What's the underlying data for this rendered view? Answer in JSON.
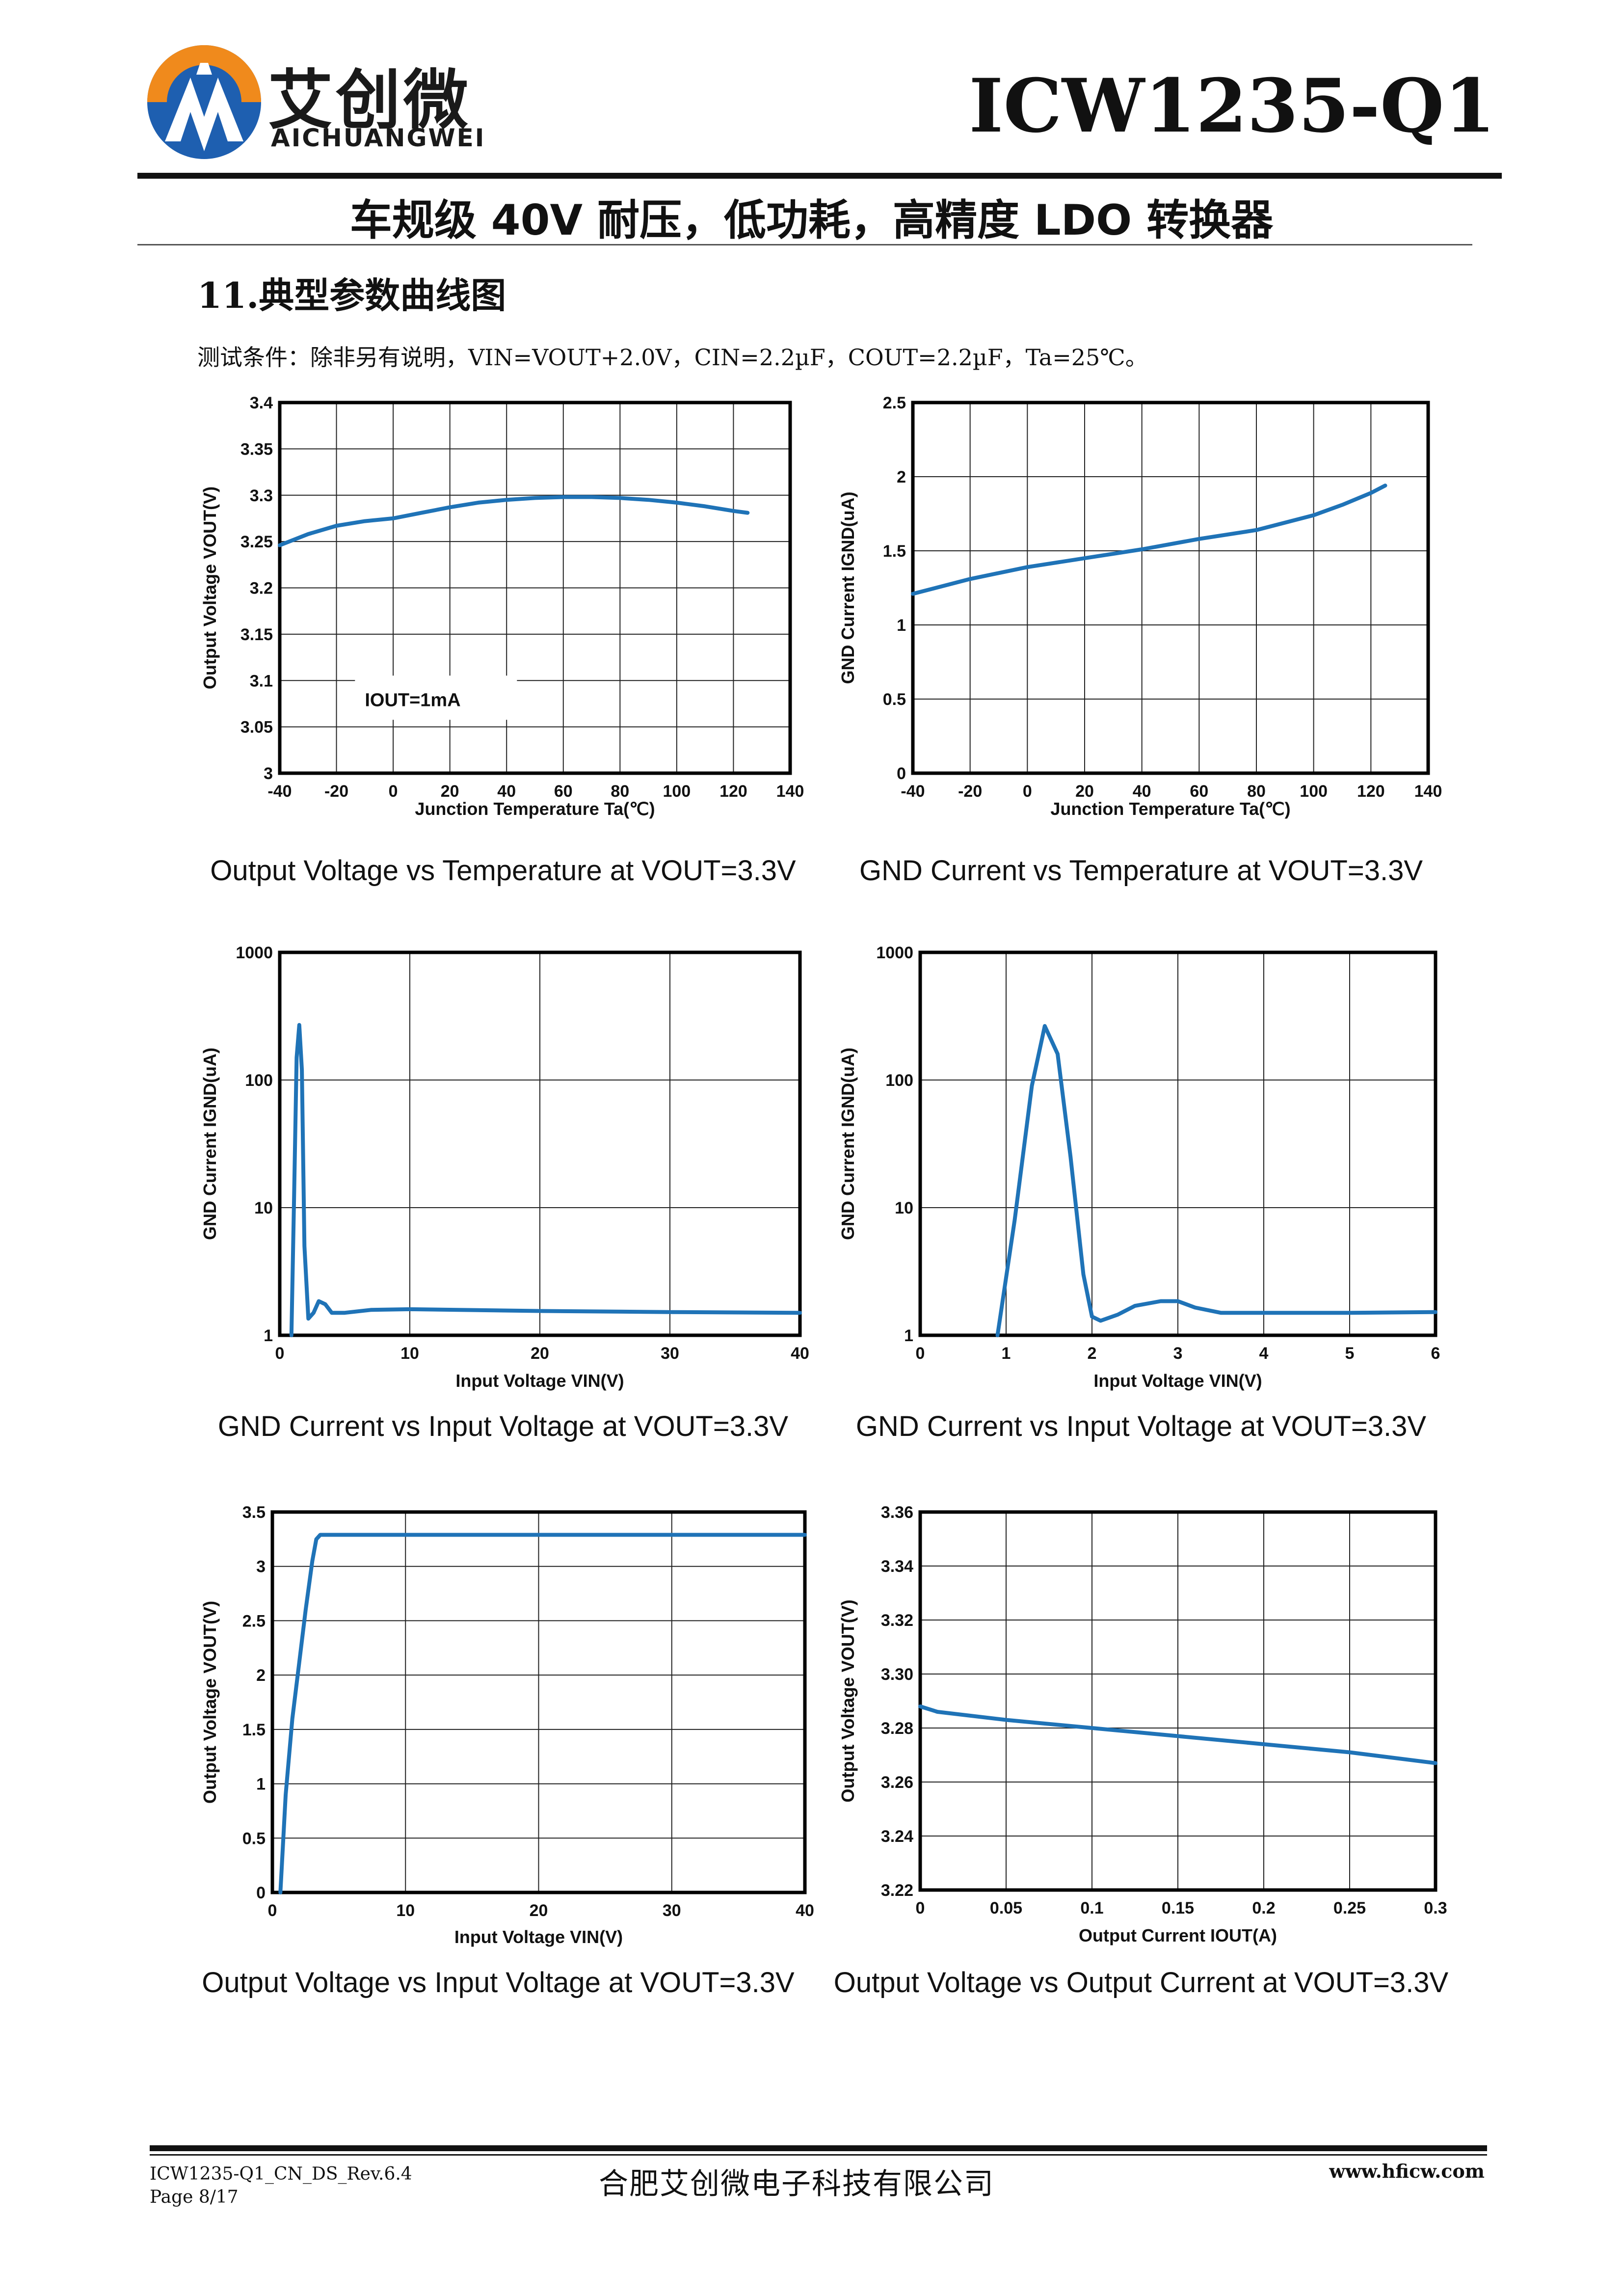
{
  "header": {
    "brand_cn": "艾创微",
    "brand_en": "AICHUANGWEI",
    "part_number": "ICW1235-Q1",
    "subtitle": "车规级 40V 耐压，低功耗，高精度 LDO 转换器"
  },
  "section": {
    "title": "11.典型参数曲线图",
    "conditions": "测试条件：除非另有说明，VIN=VOUT+2.0V，CIN=2.2µF，COUT=2.2µF，Ta=25℃。"
  },
  "chart_data": [
    {
      "type": "line",
      "caption": "Output Voltage vs Temperature at VOUT=3.3V",
      "xlabel": "Junction Temperature Ta(℃)",
      "ylabel": "Output Voltage VOUT(V)",
      "xlim": [
        -40,
        140
      ],
      "ylim": [
        3.0,
        3.4
      ],
      "xticks": [
        -40,
        -20,
        0,
        20,
        40,
        60,
        80,
        100,
        120,
        140
      ],
      "yticks": [
        3,
        3.05,
        3.1,
        3.15,
        3.2,
        3.25,
        3.3,
        3.35,
        3.4
      ],
      "annotation": "IOUT=1mA",
      "grid": true,
      "x": [
        -40,
        -30,
        -20,
        -10,
        0,
        10,
        20,
        30,
        40,
        50,
        60,
        70,
        80,
        90,
        100,
        110,
        120,
        125
      ],
      "y": [
        3.246,
        3.258,
        3.267,
        3.272,
        3.275,
        3.281,
        3.287,
        3.292,
        3.295,
        3.297,
        3.298,
        3.298,
        3.297,
        3.295,
        3.292,
        3.288,
        3.283,
        3.281
      ]
    },
    {
      "type": "line",
      "caption": "GND Current vs Temperature at VOUT=3.3V",
      "xlabel": "Junction Temperature Ta(℃)",
      "ylabel": "GND Current IGND(uA)",
      "xlim": [
        -40,
        140
      ],
      "ylim": [
        0,
        2.5
      ],
      "xticks": [
        -40,
        -20,
        0,
        20,
        40,
        60,
        80,
        100,
        120,
        140
      ],
      "yticks": [
        0,
        0.5,
        1,
        1.5,
        2,
        2.5
      ],
      "grid": true,
      "x": [
        -40,
        -20,
        0,
        20,
        40,
        60,
        80,
        100,
        110,
        120,
        125
      ],
      "y": [
        1.21,
        1.31,
        1.39,
        1.45,
        1.51,
        1.58,
        1.64,
        1.74,
        1.81,
        1.89,
        1.94
      ]
    },
    {
      "type": "line",
      "caption": "GND Current vs Input Voltage at VOUT=3.3V",
      "xlabel": "Input Voltage VIN(V)",
      "ylabel": "GND Current IGND(uA)",
      "xlim": [
        0,
        40
      ],
      "ylim": [
        1,
        1000
      ],
      "yscale": "log",
      "xticks": [
        0,
        10,
        20,
        30,
        40
      ],
      "yticks": [
        1,
        10,
        100,
        1000
      ],
      "grid": true,
      "x": [
        0.9,
        1.1,
        1.3,
        1.5,
        1.7,
        1.9,
        2.2,
        2.6,
        3.0,
        3.5,
        4.0,
        5,
        7,
        10,
        20,
        30,
        40
      ],
      "y": [
        1.0,
        12,
        150,
        270,
        120,
        5,
        1.35,
        1.5,
        1.85,
        1.75,
        1.5,
        1.5,
        1.58,
        1.6,
        1.55,
        1.52,
        1.5
      ]
    },
    {
      "type": "line",
      "caption": "GND Current vs Input Voltage at VOUT=3.3V",
      "xlabel": "Input Voltage VIN(V)",
      "ylabel": "GND Current IGND(uA)",
      "xlim": [
        0,
        6
      ],
      "ylim": [
        1,
        1000
      ],
      "yscale": "log",
      "xticks": [
        0,
        1,
        2,
        3,
        4,
        5,
        6
      ],
      "yticks": [
        1,
        10,
        100,
        1000
      ],
      "grid": true,
      "x": [
        0.9,
        1.1,
        1.3,
        1.45,
        1.6,
        1.75,
        1.9,
        2.0,
        2.1,
        2.3,
        2.5,
        2.8,
        3.0,
        3.2,
        3.5,
        4.0,
        5.0,
        6.0
      ],
      "y": [
        1.0,
        8,
        90,
        265,
        160,
        25,
        3,
        1.4,
        1.3,
        1.45,
        1.7,
        1.85,
        1.85,
        1.65,
        1.5,
        1.5,
        1.5,
        1.52
      ]
    },
    {
      "type": "line",
      "caption": "Output Voltage vs Input Voltage at VOUT=3.3V",
      "xlabel": "Input Voltage VIN(V)",
      "ylabel": "Output Voltage VOUT(V)",
      "xlim": [
        0,
        40
      ],
      "ylim": [
        0,
        3.5
      ],
      "xticks": [
        0,
        10,
        20,
        30,
        40
      ],
      "yticks": [
        0,
        0.5,
        1,
        1.5,
        2,
        2.5,
        3,
        3.5
      ],
      "grid": true,
      "x": [
        0.6,
        1.0,
        1.5,
        2.0,
        2.5,
        3.0,
        3.3,
        3.6,
        5,
        10,
        20,
        30,
        40
      ],
      "y": [
        0.0,
        0.9,
        1.6,
        2.1,
        2.6,
        3.05,
        3.25,
        3.29,
        3.29,
        3.29,
        3.29,
        3.29,
        3.29
      ]
    },
    {
      "type": "line",
      "caption": "Output Voltage vs Output Current at VOUT=3.3V",
      "xlabel": "Output Current IOUT(A)",
      "ylabel": "Output Voltage VOUT(V)",
      "xlim": [
        0,
        0.3
      ],
      "ylim": [
        3.22,
        3.36
      ],
      "xticks": [
        "0",
        "0.05",
        "0.1",
        "0.15",
        "0.2",
        "0.25",
        "0.3"
      ],
      "yticks": [
        "3.22",
        "3.24",
        "3.26",
        "3.28",
        "3.30",
        "3.32",
        "3.34",
        "3.36"
      ],
      "grid": true,
      "x": [
        0,
        0.01,
        0.05,
        0.1,
        0.15,
        0.2,
        0.25,
        0.3
      ],
      "y": [
        3.288,
        3.286,
        3.283,
        3.28,
        3.277,
        3.274,
        3.271,
        3.267
      ]
    }
  ],
  "footer": {
    "doc_id": "ICW1235-Q1_CN_DS_Rev.6.4",
    "page": "Page 8/17",
    "company": "合肥艾创微电子科技有限公司",
    "website": "www.hficw.com"
  }
}
